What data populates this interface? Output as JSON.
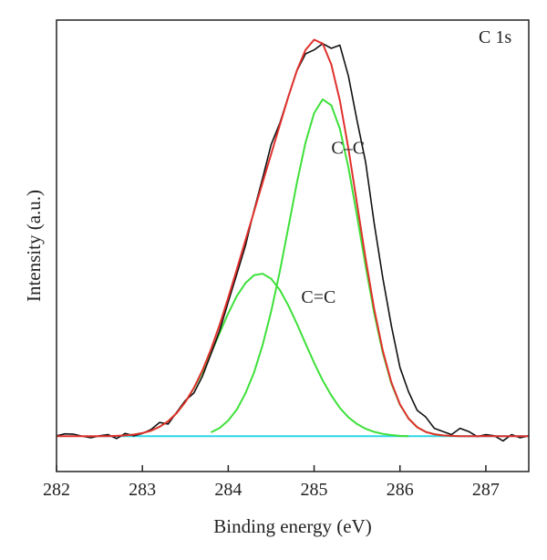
{
  "chart_data": {
    "type": "line",
    "title": "",
    "xlabel": "Binding energy (eV)",
    "ylabel": "Intensity (a.u.)",
    "xlim": [
      282,
      287.5
    ],
    "ylim": [
      -0.09,
      1.06
    ],
    "xticks": [
      "282",
      "283",
      "284",
      "285",
      "286",
      "287"
    ],
    "grid": false,
    "annotations": [
      {
        "text": "C 1s",
        "x": 287.3,
        "y": 1.03
      },
      {
        "text": "C–C",
        "x": 285.2,
        "y": 0.72
      },
      {
        "text": "C=C",
        "x": 284.85,
        "y": 0.34
      }
    ],
    "series": [
      {
        "role": "raw",
        "color": "#111111",
        "x": [
          282.0,
          282.1,
          282.2,
          282.3,
          282.4,
          282.5,
          282.6,
          282.7,
          282.8,
          282.9,
          283.0,
          283.1,
          283.2,
          283.3,
          283.4,
          283.5,
          283.6,
          283.7,
          283.8,
          283.9,
          284.0,
          284.1,
          284.2,
          284.3,
          284.4,
          284.5,
          284.6,
          284.7,
          284.8,
          284.9,
          285.0,
          285.1,
          285.2,
          285.3,
          285.4,
          285.5,
          285.6,
          285.7,
          285.8,
          285.9,
          286.0,
          286.1,
          286.2,
          286.3,
          286.4,
          286.5,
          286.6,
          286.7,
          286.8,
          286.9,
          287.0,
          287.1,
          287.2,
          287.3,
          287.4,
          287.5
        ],
        "y": [
          0.001,
          0.006,
          0.005,
          0.0,
          -0.004,
          0.001,
          0.004,
          -0.006,
          0.007,
          0.001,
          0.007,
          0.017,
          0.035,
          0.031,
          0.061,
          0.091,
          0.11,
          0.153,
          0.21,
          0.269,
          0.342,
          0.413,
          0.485,
          0.575,
          0.657,
          0.743,
          0.797,
          0.865,
          0.931,
          0.974,
          0.984,
          1.0,
          0.988,
          0.996,
          0.917,
          0.804,
          0.698,
          0.542,
          0.403,
          0.281,
          0.175,
          0.113,
          0.066,
          0.049,
          0.02,
          0.012,
          0.004,
          0.02,
          0.012,
          -0.001,
          0.004,
          0.001,
          -0.012,
          0.004,
          -0.004,
          0.001
        ]
      },
      {
        "role": "envelope",
        "color": "#e0312d",
        "x": [
          282.0,
          282.1,
          282.2,
          282.3,
          282.4,
          282.5,
          282.6,
          282.7,
          282.8,
          282.9,
          283.0,
          283.1,
          283.2,
          283.3,
          283.4,
          283.5,
          283.6,
          283.7,
          283.8,
          283.9,
          284.0,
          284.1,
          284.2,
          284.3,
          284.4,
          284.5,
          284.6,
          284.7,
          284.8,
          284.9,
          285.0,
          285.1,
          285.2,
          285.3,
          285.4,
          285.5,
          285.6,
          285.7,
          285.8,
          285.9,
          286.0,
          286.1,
          286.2,
          286.3,
          286.4,
          286.5,
          286.6,
          286.7,
          286.8,
          286.9,
          287.0,
          287.1,
          287.2,
          287.3,
          287.4,
          287.5
        ],
        "y": [
          0.0,
          0.0,
          0.0,
          0.0,
          0.0,
          0.0,
          0.0,
          0.001,
          0.002,
          0.004,
          0.008,
          0.014,
          0.024,
          0.038,
          0.059,
          0.087,
          0.123,
          0.168,
          0.222,
          0.284,
          0.353,
          0.425,
          0.499,
          0.572,
          0.646,
          0.719,
          0.792,
          0.865,
          0.932,
          0.984,
          1.01,
          1.0,
          0.947,
          0.855,
          0.732,
          0.592,
          0.452,
          0.324,
          0.218,
          0.137,
          0.081,
          0.045,
          0.023,
          0.011,
          0.005,
          0.002,
          0.001,
          0.0,
          0.0,
          0.0,
          0.0,
          0.0,
          0.0,
          0.0,
          0.0,
          0.0
        ]
      },
      {
        "role": "component",
        "name": "C=C",
        "color": "#3ee03a",
        "x": [
          282.8,
          282.9,
          283.0,
          283.1,
          283.2,
          283.3,
          283.4,
          283.5,
          283.6,
          283.7,
          283.8,
          283.9,
          284.0,
          284.1,
          284.2,
          284.3,
          284.4,
          284.5,
          284.6,
          284.7,
          284.8,
          284.9,
          285.0,
          285.1,
          285.2,
          285.3,
          285.4,
          285.5,
          285.6,
          285.7,
          285.8,
          285.9,
          286.0,
          286.1
        ],
        "y": [
          0.002,
          0.004,
          0.008,
          0.014,
          0.024,
          0.038,
          0.059,
          0.087,
          0.122,
          0.164,
          0.212,
          0.263,
          0.313,
          0.357,
          0.39,
          0.41,
          0.414,
          0.401,
          0.373,
          0.333,
          0.286,
          0.236,
          0.187,
          0.142,
          0.104,
          0.072,
          0.048,
          0.031,
          0.019,
          0.011,
          0.006,
          0.003,
          0.001,
          0.0
        ]
      },
      {
        "role": "component",
        "name": "C–C",
        "color": "#3ee03a",
        "x": [
          283.8,
          283.9,
          284.0,
          284.1,
          284.2,
          284.3,
          284.4,
          284.5,
          284.6,
          284.7,
          284.8,
          284.9,
          285.0,
          285.1,
          285.2,
          285.3,
          285.4,
          285.5,
          285.6,
          285.7,
          285.8,
          285.9,
          286.0,
          286.1,
          286.2,
          286.3,
          286.4,
          286.5,
          286.6,
          286.7
        ],
        "y": [
          0.01,
          0.021,
          0.04,
          0.068,
          0.109,
          0.162,
          0.232,
          0.318,
          0.419,
          0.532,
          0.646,
          0.748,
          0.823,
          0.858,
          0.843,
          0.783,
          0.684,
          0.561,
          0.433,
          0.313,
          0.212,
          0.134,
          0.08,
          0.045,
          0.023,
          0.011,
          0.005,
          0.002,
          0.001,
          0.0
        ]
      },
      {
        "role": "baseline",
        "color": "#2cd6e8",
        "x": [
          282.5,
          287.5
        ],
        "y": [
          0.0,
          0.0
        ]
      }
    ]
  }
}
